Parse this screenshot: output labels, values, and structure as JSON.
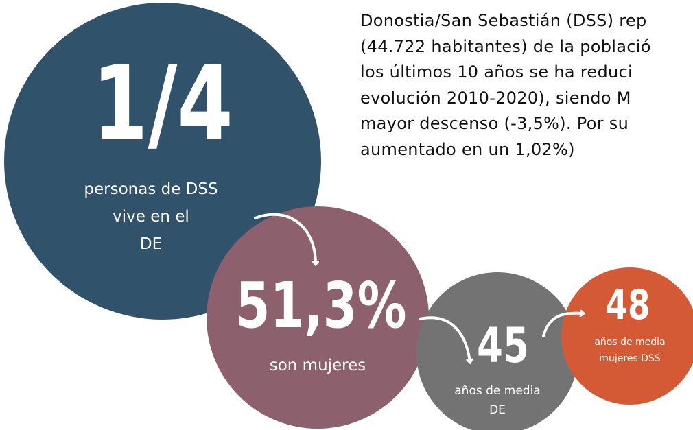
{
  "paragraph": {
    "lines": [
      "Donostia/San Sebastián (DSS) rep",
      "(44.722 habitantes) de la població",
      "los últimos 10 años se ha reduci",
      "evolución 2010-2020), siendo M",
      "mayor descenso (-3,5%). Por su",
      "aumentado en un 1,02%)"
    ]
  },
  "stats": [
    {
      "value": "1/4",
      "label": [
        "personas de DSS",
        "vive en el",
        "DE"
      ]
    },
    {
      "value": "51,3%",
      "label": [
        "son mujeres"
      ]
    },
    {
      "value": "45",
      "label": [
        "años de media",
        "DE"
      ]
    },
    {
      "value": "48",
      "label": [
        "años de media",
        "mujeres DSS"
      ]
    }
  ]
}
